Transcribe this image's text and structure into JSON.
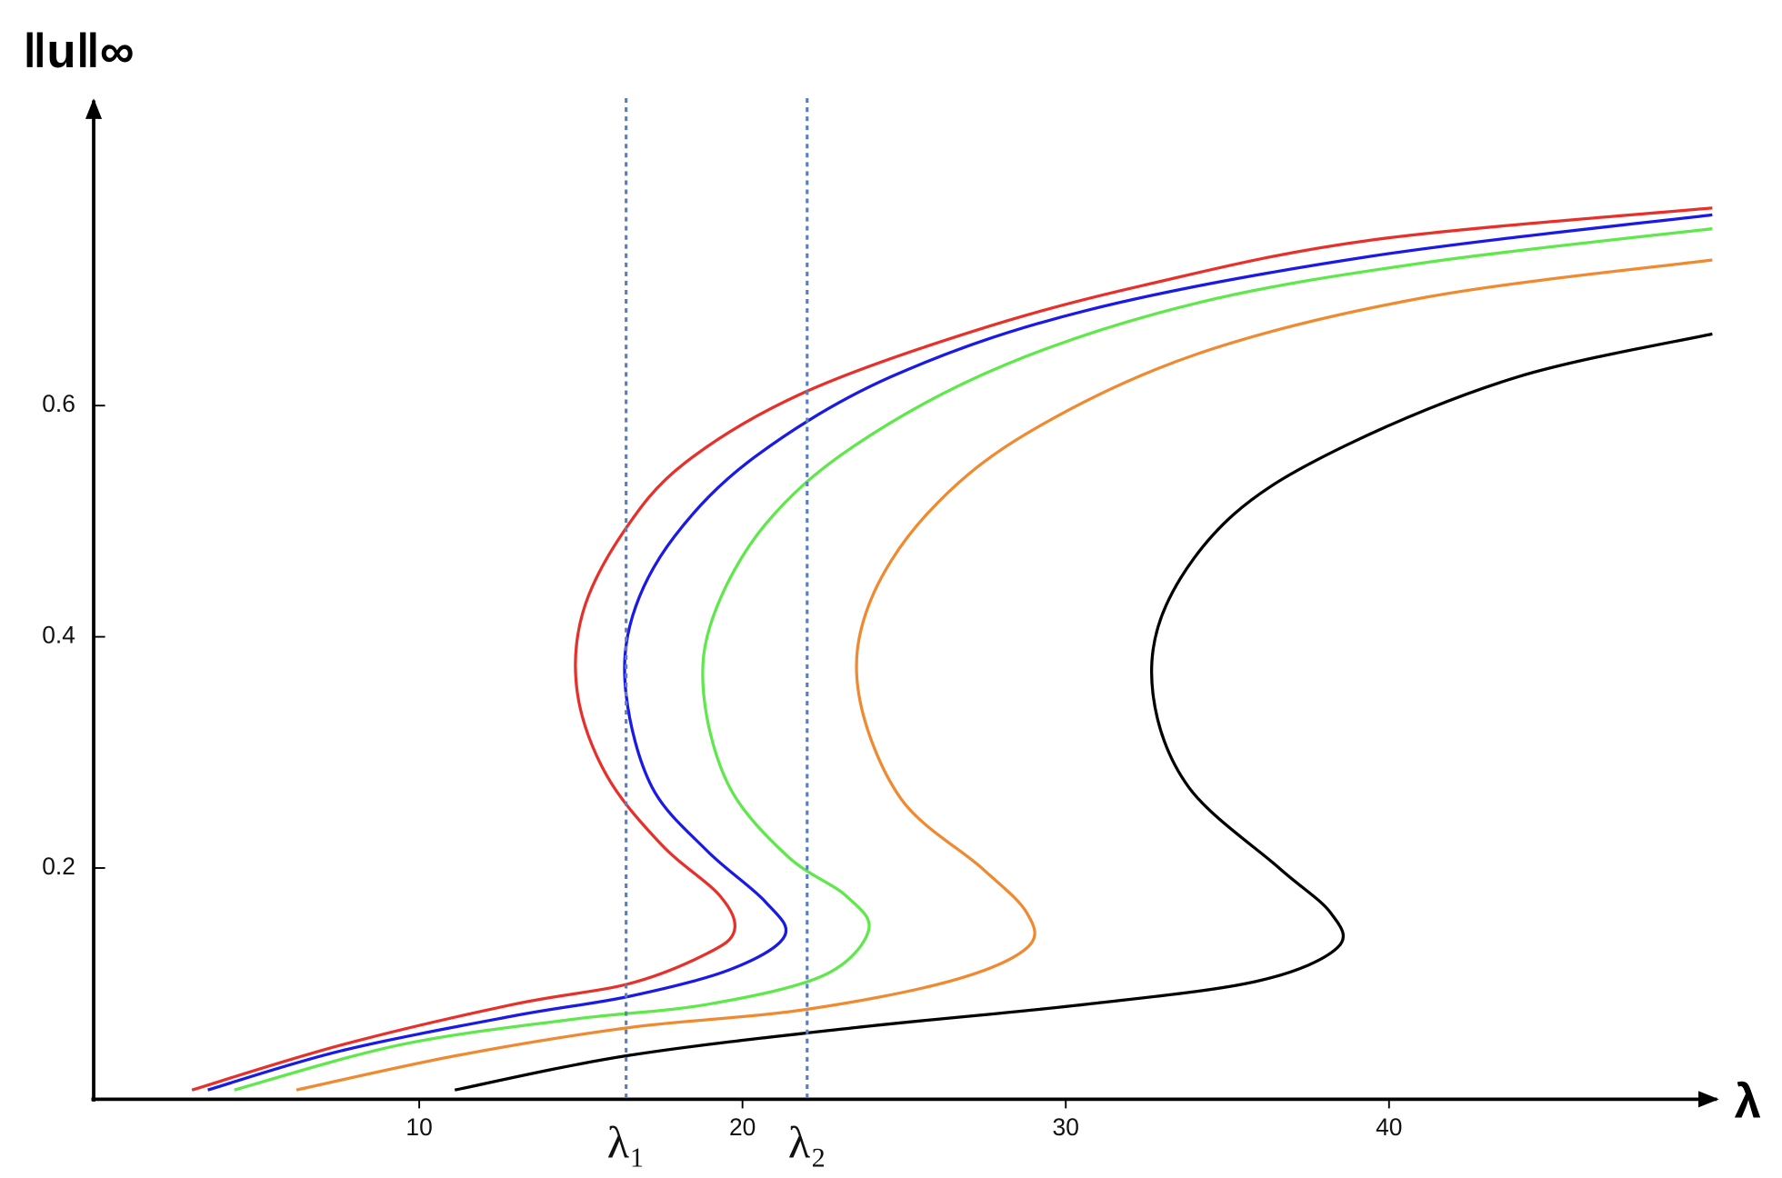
{
  "chart_data": {
    "type": "line",
    "x_label": "λ",
    "y_label": "‖u‖∞",
    "xlim": [
      0,
      50
    ],
    "ylim": [
      0,
      0.86
    ],
    "xticks": [
      10,
      20,
      30,
      40
    ],
    "yticks": [
      0.2,
      0.4,
      0.6
    ],
    "vlines": [
      {
        "x": 16.4,
        "label": "λ₁",
        "color": "#5b7fb8"
      },
      {
        "x": 22.0,
        "label": "λ₂",
        "color": "#5b7fb8"
      }
    ],
    "series": [
      {
        "color": "#e8302a",
        "x": [
          2.97,
          7.6,
          12.9,
          16.5,
          18.9,
          19.75,
          19.3,
          17.5,
          15.8,
          14.9,
          15.05,
          16.3,
          18.2,
          21.8,
          27.1,
          32.4,
          39.4,
          50
        ],
        "values": [
          0.008,
          0.047,
          0.082,
          0.1,
          0.126,
          0.146,
          0.176,
          0.22,
          0.28,
          0.35,
          0.42,
          0.49,
          0.55,
          0.61,
          0.664,
          0.704,
          0.743,
          0.771
        ]
      },
      {
        "color": "#1a1ae8",
        "x": [
          3.46,
          7.6,
          12.9,
          16.5,
          19.6,
          21.3,
          20.7,
          18.9,
          17.2,
          16.4,
          16.6,
          17.9,
          20.4,
          24.6,
          30.6,
          39.4,
          50
        ],
        "values": [
          0.008,
          0.042,
          0.072,
          0.089,
          0.112,
          0.141,
          0.171,
          0.215,
          0.27,
          0.35,
          0.418,
          0.487,
          0.556,
          0.625,
          0.682,
          0.729,
          0.765
        ]
      },
      {
        "color": "#5ee84a",
        "x": [
          4.28,
          9.4,
          14.7,
          18.9,
          22.5,
          23.9,
          23.2,
          21.4,
          19.6,
          18.8,
          19.1,
          20.7,
          23.5,
          28.1,
          34.1,
          41.2,
          50
        ],
        "values": [
          0.008,
          0.047,
          0.069,
          0.082,
          0.107,
          0.146,
          0.176,
          0.21,
          0.27,
          0.35,
          0.418,
          0.497,
          0.566,
          0.635,
          0.689,
          0.724,
          0.753
        ]
      },
      {
        "color": "#f08a30",
        "x": [
          6.2,
          11.2,
          16.5,
          21.8,
          26.4,
          28.8,
          28.8,
          27.4,
          24.9,
          23.6,
          23.9,
          25.7,
          28.8,
          34.1,
          41.2,
          50
        ],
        "values": [
          0.008,
          0.038,
          0.062,
          0.077,
          0.102,
          0.131,
          0.161,
          0.2,
          0.26,
          0.35,
          0.427,
          0.506,
          0.576,
          0.645,
          0.694,
          0.726
        ]
      },
      {
        "color": "#000000",
        "x": [
          11.1,
          16.5,
          23.5,
          30.6,
          35.9,
          38.4,
          38.2,
          36.6,
          33.8,
          32.7,
          33.1,
          35.2,
          38.7,
          44,
          50
        ],
        "values": [
          0.008,
          0.038,
          0.062,
          0.082,
          0.102,
          0.131,
          0.161,
          0.2,
          0.27,
          0.35,
          0.427,
          0.506,
          0.566,
          0.625,
          0.662
        ]
      }
    ]
  }
}
